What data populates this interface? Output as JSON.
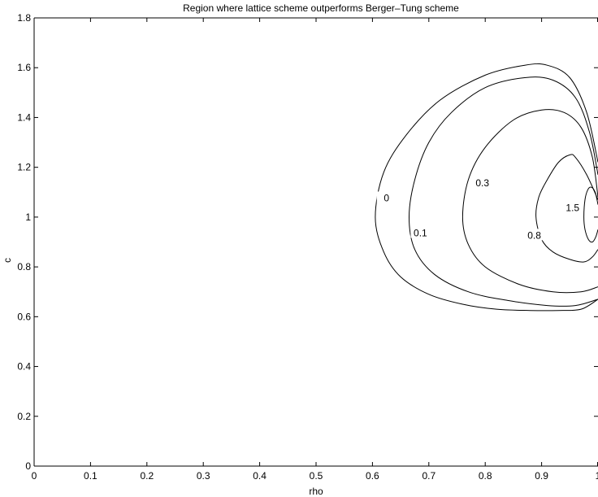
{
  "chart_data": {
    "type": "contour",
    "title": "Region where lattice scheme outperforms Berger–Tung scheme",
    "xlabel": "rho",
    "ylabel": "c",
    "xlim": [
      0,
      1
    ],
    "ylim": [
      0,
      1.8
    ],
    "x_ticks": [
      0,
      0.1,
      0.2,
      0.3,
      0.4,
      0.5,
      0.6,
      0.7,
      0.8,
      0.9,
      1
    ],
    "x_tick_labels": [
      "0",
      "0.1",
      "0.2",
      "0.3",
      "0.4",
      "0.5",
      "0.6",
      "0.7",
      "0.8",
      "0.9",
      "1"
    ],
    "y_ticks": [
      0,
      0.2,
      0.4,
      0.6,
      0.8,
      1,
      1.2,
      1.4,
      1.6,
      1.8
    ],
    "y_tick_labels": [
      "0",
      "0.2",
      "0.4",
      "0.6",
      "0.8",
      "1",
      "1.2",
      "1.4",
      "1.6",
      "1.8"
    ],
    "grid": false,
    "line_color": "#000000",
    "contours": [
      {
        "level_label": "0",
        "label_at": [
          0.625,
          1.07
        ],
        "points": [
          [
            1.0,
            1.22
          ],
          [
            0.98,
            1.42
          ],
          [
            0.95,
            1.56
          ],
          [
            0.91,
            1.61
          ],
          [
            0.87,
            1.61
          ],
          [
            0.8,
            1.57
          ],
          [
            0.72,
            1.47
          ],
          [
            0.66,
            1.33
          ],
          [
            0.62,
            1.18
          ],
          [
            0.605,
            1.0
          ],
          [
            0.62,
            0.86
          ],
          [
            0.65,
            0.76
          ],
          [
            0.7,
            0.69
          ],
          [
            0.76,
            0.65
          ],
          [
            0.82,
            0.63
          ],
          [
            0.88,
            0.625
          ],
          [
            0.93,
            0.625
          ],
          [
            0.97,
            0.63
          ],
          [
            1.0,
            0.67
          ]
        ]
      },
      {
        "level_label": "0.1",
        "label_at": [
          0.685,
          0.93
        ],
        "points": [
          [
            1.0,
            1.17
          ],
          [
            0.985,
            1.34
          ],
          [
            0.96,
            1.48
          ],
          [
            0.92,
            1.55
          ],
          [
            0.87,
            1.56
          ],
          [
            0.8,
            1.52
          ],
          [
            0.74,
            1.42
          ],
          [
            0.7,
            1.3
          ],
          [
            0.675,
            1.15
          ],
          [
            0.665,
            1.0
          ],
          [
            0.675,
            0.87
          ],
          [
            0.71,
            0.77
          ],
          [
            0.77,
            0.7
          ],
          [
            0.84,
            0.665
          ],
          [
            0.91,
            0.645
          ],
          [
            0.96,
            0.645
          ],
          [
            1.0,
            0.67
          ]
        ]
      },
      {
        "level_label": "0.3",
        "label_at": [
          0.795,
          1.13
        ],
        "points": [
          [
            1.0,
            1.08
          ],
          [
            0.99,
            1.24
          ],
          [
            0.97,
            1.36
          ],
          [
            0.94,
            1.42
          ],
          [
            0.9,
            1.43
          ],
          [
            0.85,
            1.39
          ],
          [
            0.8,
            1.28
          ],
          [
            0.77,
            1.15
          ],
          [
            0.76,
            1.0
          ],
          [
            0.77,
            0.89
          ],
          [
            0.8,
            0.8
          ],
          [
            0.86,
            0.73
          ],
          [
            0.92,
            0.7
          ],
          [
            0.97,
            0.7
          ],
          [
            1.0,
            0.72
          ]
        ]
      },
      {
        "level_label": "0.8",
        "label_at": [
          0.887,
          0.92
        ],
        "points": [
          [
            1.0,
            1.07
          ],
          [
            0.98,
            1.17
          ],
          [
            0.96,
            1.24
          ],
          [
            0.95,
            1.25
          ],
          [
            0.93,
            1.22
          ],
          [
            0.91,
            1.15
          ],
          [
            0.895,
            1.08
          ],
          [
            0.89,
            1.0
          ],
          [
            0.9,
            0.91
          ],
          [
            0.92,
            0.86
          ],
          [
            0.95,
            0.83
          ],
          [
            0.975,
            0.82
          ],
          [
            0.99,
            0.84
          ],
          [
            1.0,
            0.87
          ]
        ]
      },
      {
        "level_label": "1.5",
        "label_at": [
          0.955,
          1.03
        ],
        "points": [
          [
            1.0,
            1.05
          ],
          [
            0.995,
            1.1
          ],
          [
            0.988,
            1.12
          ],
          [
            0.982,
            1.11
          ],
          [
            0.977,
            1.07
          ],
          [
            0.975,
            1.0
          ],
          [
            0.977,
            0.95
          ],
          [
            0.983,
            0.91
          ],
          [
            0.99,
            0.9
          ],
          [
            0.996,
            0.92
          ],
          [
            1.0,
            0.95
          ]
        ]
      }
    ]
  }
}
